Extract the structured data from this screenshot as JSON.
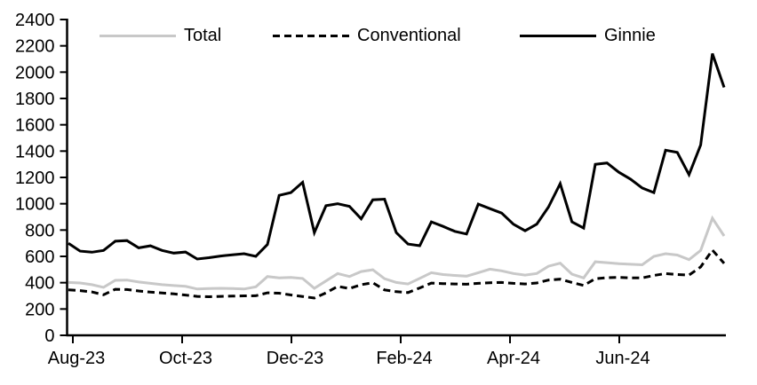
{
  "chart_data": {
    "type": "line",
    "title": "",
    "xlabel": "",
    "ylabel": "",
    "grid": false,
    "legend_position": "top",
    "ylim": [
      0,
      2400
    ],
    "y_ticks": [
      0,
      200,
      400,
      600,
      800,
      1000,
      1200,
      1400,
      1600,
      1800,
      2000,
      2200,
      2400
    ],
    "x_tick_labels": [
      "Aug-23",
      "Oct-23",
      "Dec-23",
      "Feb-24",
      "Apr-24",
      "Jun-24"
    ],
    "x_frequency": "weekly, Aug-23 through Aug-24",
    "series": [
      {
        "name": "Total",
        "color": "#c8c8c8",
        "style": "solid",
        "values": [
          402,
          398,
          385,
          365,
          418,
          420,
          405,
          395,
          385,
          378,
          372,
          352,
          355,
          357,
          355,
          352,
          368,
          447,
          436,
          440,
          432,
          357,
          413,
          469,
          447,
          485,
          498,
          430,
          402,
          390,
          433,
          476,
          462,
          455,
          450,
          476,
          503,
          490,
          470,
          458,
          470,
          525,
          548,
          465,
          436,
          559,
          552,
          545,
          540,
          536,
          600,
          620,
          610,
          575,
          645,
          890,
          755
        ]
      },
      {
        "name": "Conventional",
        "color": "#000000",
        "style": "dashed",
        "values": [
          345,
          340,
          330,
          308,
          350,
          348,
          337,
          328,
          322,
          315,
          306,
          296,
          293,
          296,
          298,
          300,
          301,
          323,
          320,
          307,
          295,
          283,
          323,
          372,
          355,
          385,
          400,
          345,
          332,
          325,
          360,
          397,
          393,
          390,
          388,
          395,
          400,
          402,
          395,
          390,
          398,
          420,
          427,
          402,
          379,
          430,
          438,
          440,
          437,
          436,
          455,
          469,
          462,
          458,
          520,
          648,
          547
        ]
      },
      {
        "name": "Ginnie",
        "color": "#000000",
        "style": "solid",
        "values": [
          700,
          640,
          632,
          645,
          715,
          720,
          665,
          680,
          645,
          625,
          633,
          580,
          590,
          603,
          612,
          620,
          600,
          690,
          1064,
          1085,
          1163,
          781,
          985,
          1000,
          980,
          885,
          1030,
          1035,
          781,
          694,
          681,
          862,
          828,
          790,
          770,
          997,
          963,
          929,
          845,
          795,
          845,
          975,
          1153,
          862,
          815,
          1300,
          1310,
          1240,
          1187,
          1120,
          1085,
          1407,
          1390,
          1221,
          1447,
          2141,
          1884
        ]
      }
    ]
  },
  "axes": {
    "y_axis_color": "#000000",
    "x_axis_color": "#000000"
  }
}
